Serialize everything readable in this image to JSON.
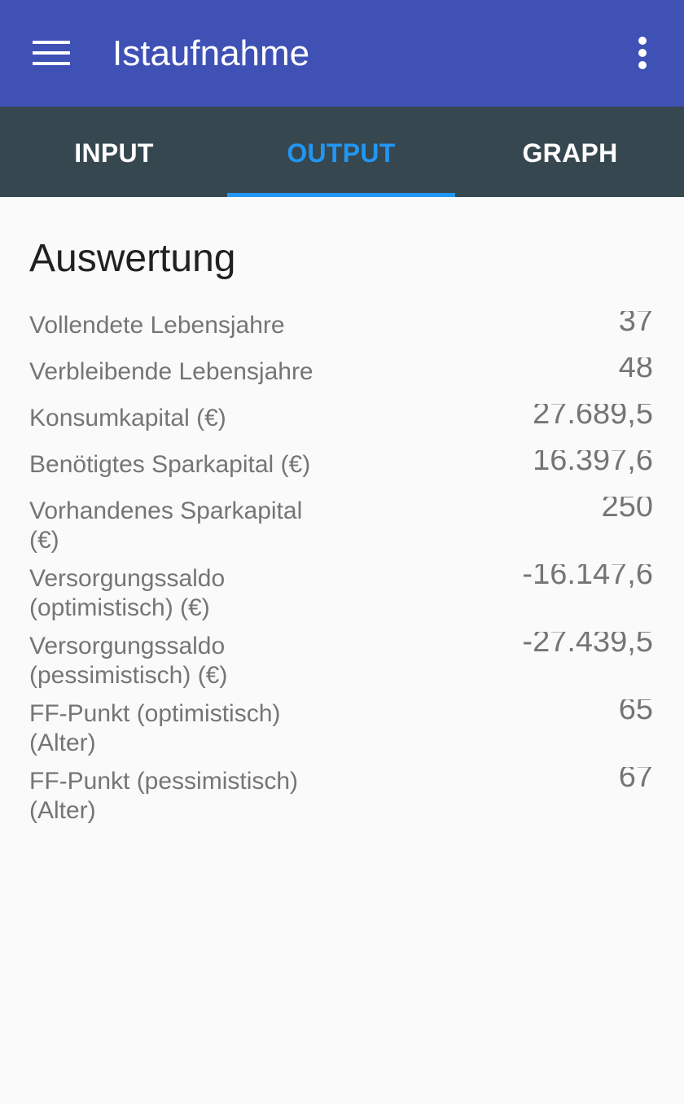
{
  "appbar": {
    "title": "Istaufnahme",
    "menu_icon": "hamburger-menu-icon",
    "overflow_icon": "more-vert-icon",
    "color": "#3f51b5"
  },
  "tabs": {
    "items": [
      {
        "label": "INPUT"
      },
      {
        "label": "OUTPUT"
      },
      {
        "label": "GRAPH"
      }
    ],
    "active": "OUTPUT",
    "background": "#37474f",
    "accent": "#2196f3"
  },
  "main": {
    "title": "Auswertung",
    "rows": [
      {
        "label": "Vollendete Lebensjahre",
        "value": "37"
      },
      {
        "label": "Verbleibende Lebensjahre",
        "value": "48"
      },
      {
        "label": "Konsumkapital (€)",
        "value": "27.689,5"
      },
      {
        "label": "Benötigtes Sparkapital (€)",
        "value": "16.397,6"
      },
      {
        "label": "Vorhandenes Sparkapital (€)",
        "value": "250"
      },
      {
        "label": "Versorgungssaldo (optimistisch) (€)",
        "value": "-16.147,6"
      },
      {
        "label": "Versorgungssaldo (pessimistisch) (€)",
        "value": "-27.439,5"
      },
      {
        "label": "FF-Punkt (optimistisch) (Alter)",
        "value": "65"
      },
      {
        "label": "FF-Punkt (pessimistisch) (Alter)",
        "value": "67"
      }
    ]
  }
}
